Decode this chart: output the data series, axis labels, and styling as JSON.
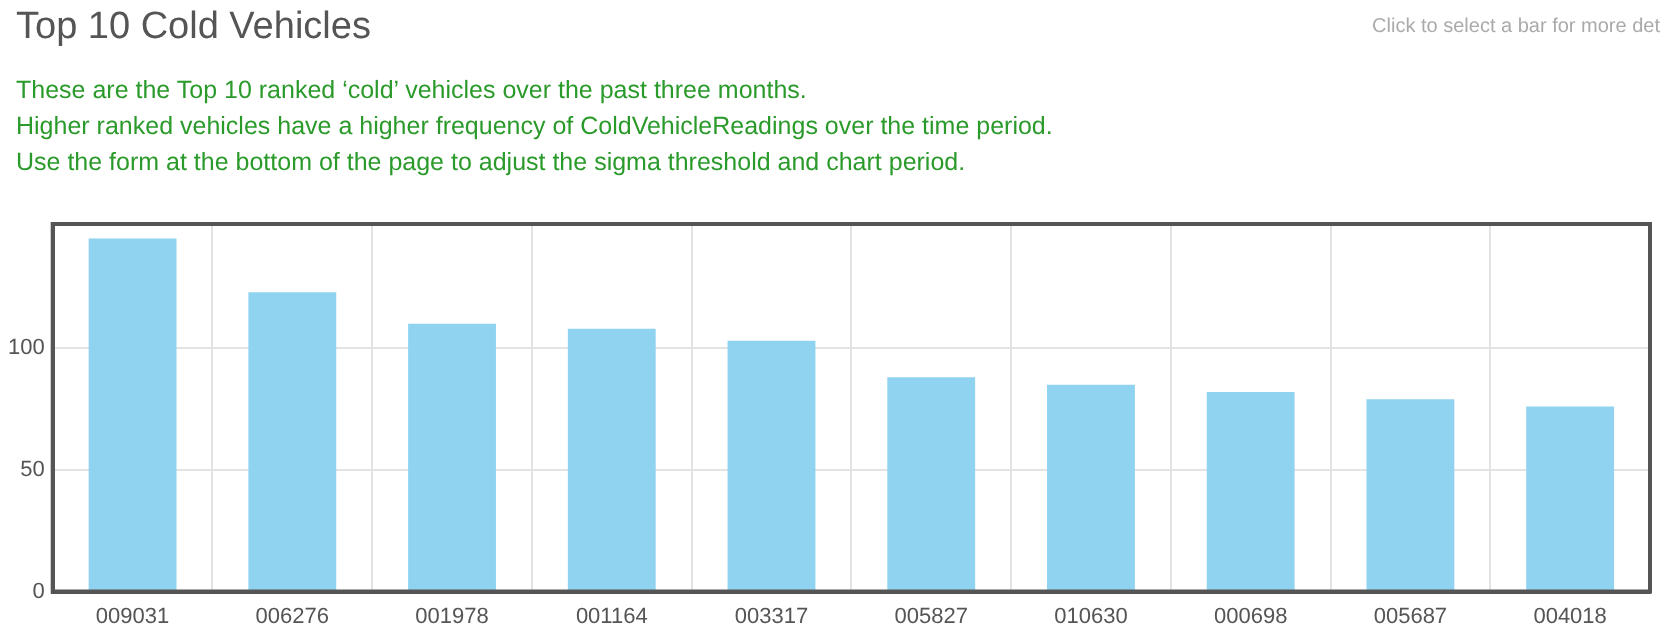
{
  "chart_data": {
    "type": "bar",
    "title": "Top 10 Cold Vehicles",
    "subtitle": "These are the Top 10 ranked ‘cold’ vehicles over the past three months.\nHigher ranked vehicles have a higher frequency of ColdVehicleReadings over the time period.\nUse the form at the bottom of the page to adjust the sigma threshold and chart period.",
    "annotations": [
      "Click to select a bar for more det"
    ],
    "categories": [
      "009031",
      "006276",
      "001978",
      "001164",
      "003317",
      "005827",
      "010630",
      "000698",
      "005687",
      "004018"
    ],
    "values": [
      145,
      123,
      110,
      108,
      103,
      88,
      85,
      82,
      79,
      76
    ],
    "color": "#8fd3f0",
    "ylim": [
      0,
      151
    ],
    "yticks": [
      0,
      50,
      100
    ],
    "grid": true
  }
}
